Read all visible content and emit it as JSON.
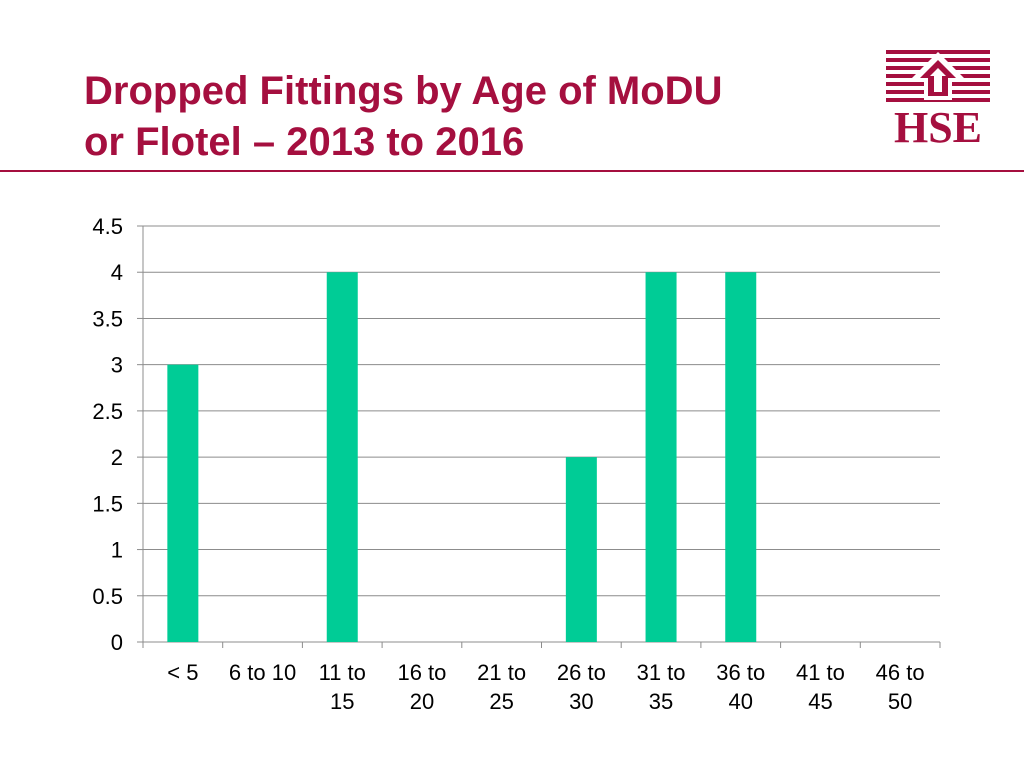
{
  "slide": {
    "title_lines": [
      "Dropped Fittings by Age of MoDU",
      "or Flotel – 2013 to 2016"
    ],
    "accent_color": "#a50f3f"
  },
  "logo": {
    "text": "HSE",
    "icon": "hse-house-logo-icon",
    "color": "#a50f3f"
  },
  "chart_data": {
    "type": "bar",
    "categories": [
      "< 5",
      "6 to 10",
      "11 to 15",
      "16 to 20",
      "21 to 25",
      "26 to 30",
      "31 to 35",
      "36 to 40",
      "41 to 45",
      "46 to 50"
    ],
    "category_label_lines": [
      [
        "< 5"
      ],
      [
        "6 to 10"
      ],
      [
        "11 to",
        "15"
      ],
      [
        "16 to",
        "20"
      ],
      [
        "21 to",
        "25"
      ],
      [
        "26 to",
        "30"
      ],
      [
        "31 to",
        "35"
      ],
      [
        "36 to",
        "40"
      ],
      [
        "41 to",
        "45"
      ],
      [
        "46 to",
        "50"
      ]
    ],
    "values": [
      3,
      0,
      4,
      0,
      0,
      2,
      4,
      4,
      0,
      0
    ],
    "ylim": [
      0,
      4.5
    ],
    "yticks": [
      "0",
      "0.5",
      "1",
      "1.5",
      "2",
      "2.5",
      "3",
      "3.5",
      "4",
      "4.5"
    ],
    "title": "",
    "xlabel": "",
    "ylabel": "",
    "grid": true,
    "legend": "none",
    "bar_color": "#00cc96",
    "grid_color": "#8c8c8c"
  }
}
